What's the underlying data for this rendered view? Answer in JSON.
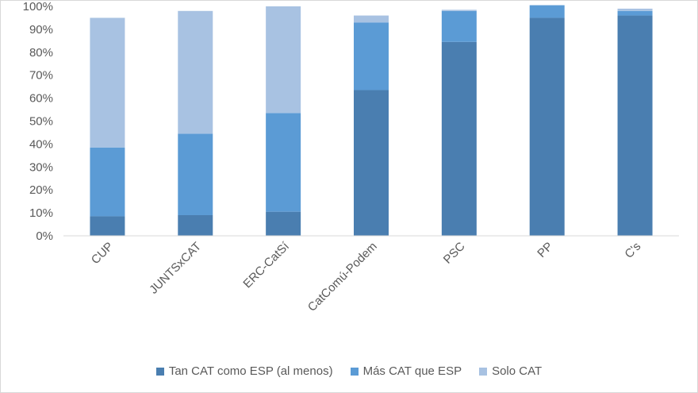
{
  "chart_data": {
    "type": "bar",
    "stacked": true,
    "categories": [
      "CUP",
      "JUNTSxCAT",
      "ERC-CatSí",
      "CatComú-Podem",
      "PSC",
      "PP",
      "C's"
    ],
    "series": [
      {
        "name": "Tan CAT como ESP (al menos)",
        "color": "#4a7eb0",
        "values": [
          8.5,
          9,
          10.5,
          63.5,
          84.5,
          95,
          96
        ]
      },
      {
        "name": "Más CAT que ESP",
        "color": "#5b9bd5",
        "values": [
          30,
          35.5,
          43,
          29.5,
          13.5,
          5.5,
          2
        ]
      },
      {
        "name": "Solo CAT",
        "color": "#a8c2e2",
        "values": [
          56.5,
          53.5,
          46.5,
          3,
          0.5,
          0,
          1
        ]
      }
    ],
    "y_ticks": [
      "0%",
      "10%",
      "20%",
      "30%",
      "40%",
      "50%",
      "60%",
      "70%",
      "80%",
      "90%",
      "100%"
    ],
    "ylim": [
      0,
      100
    ],
    "title": "",
    "xlabel": "",
    "ylabel": "",
    "grid": false,
    "legend_position": "bottom"
  }
}
